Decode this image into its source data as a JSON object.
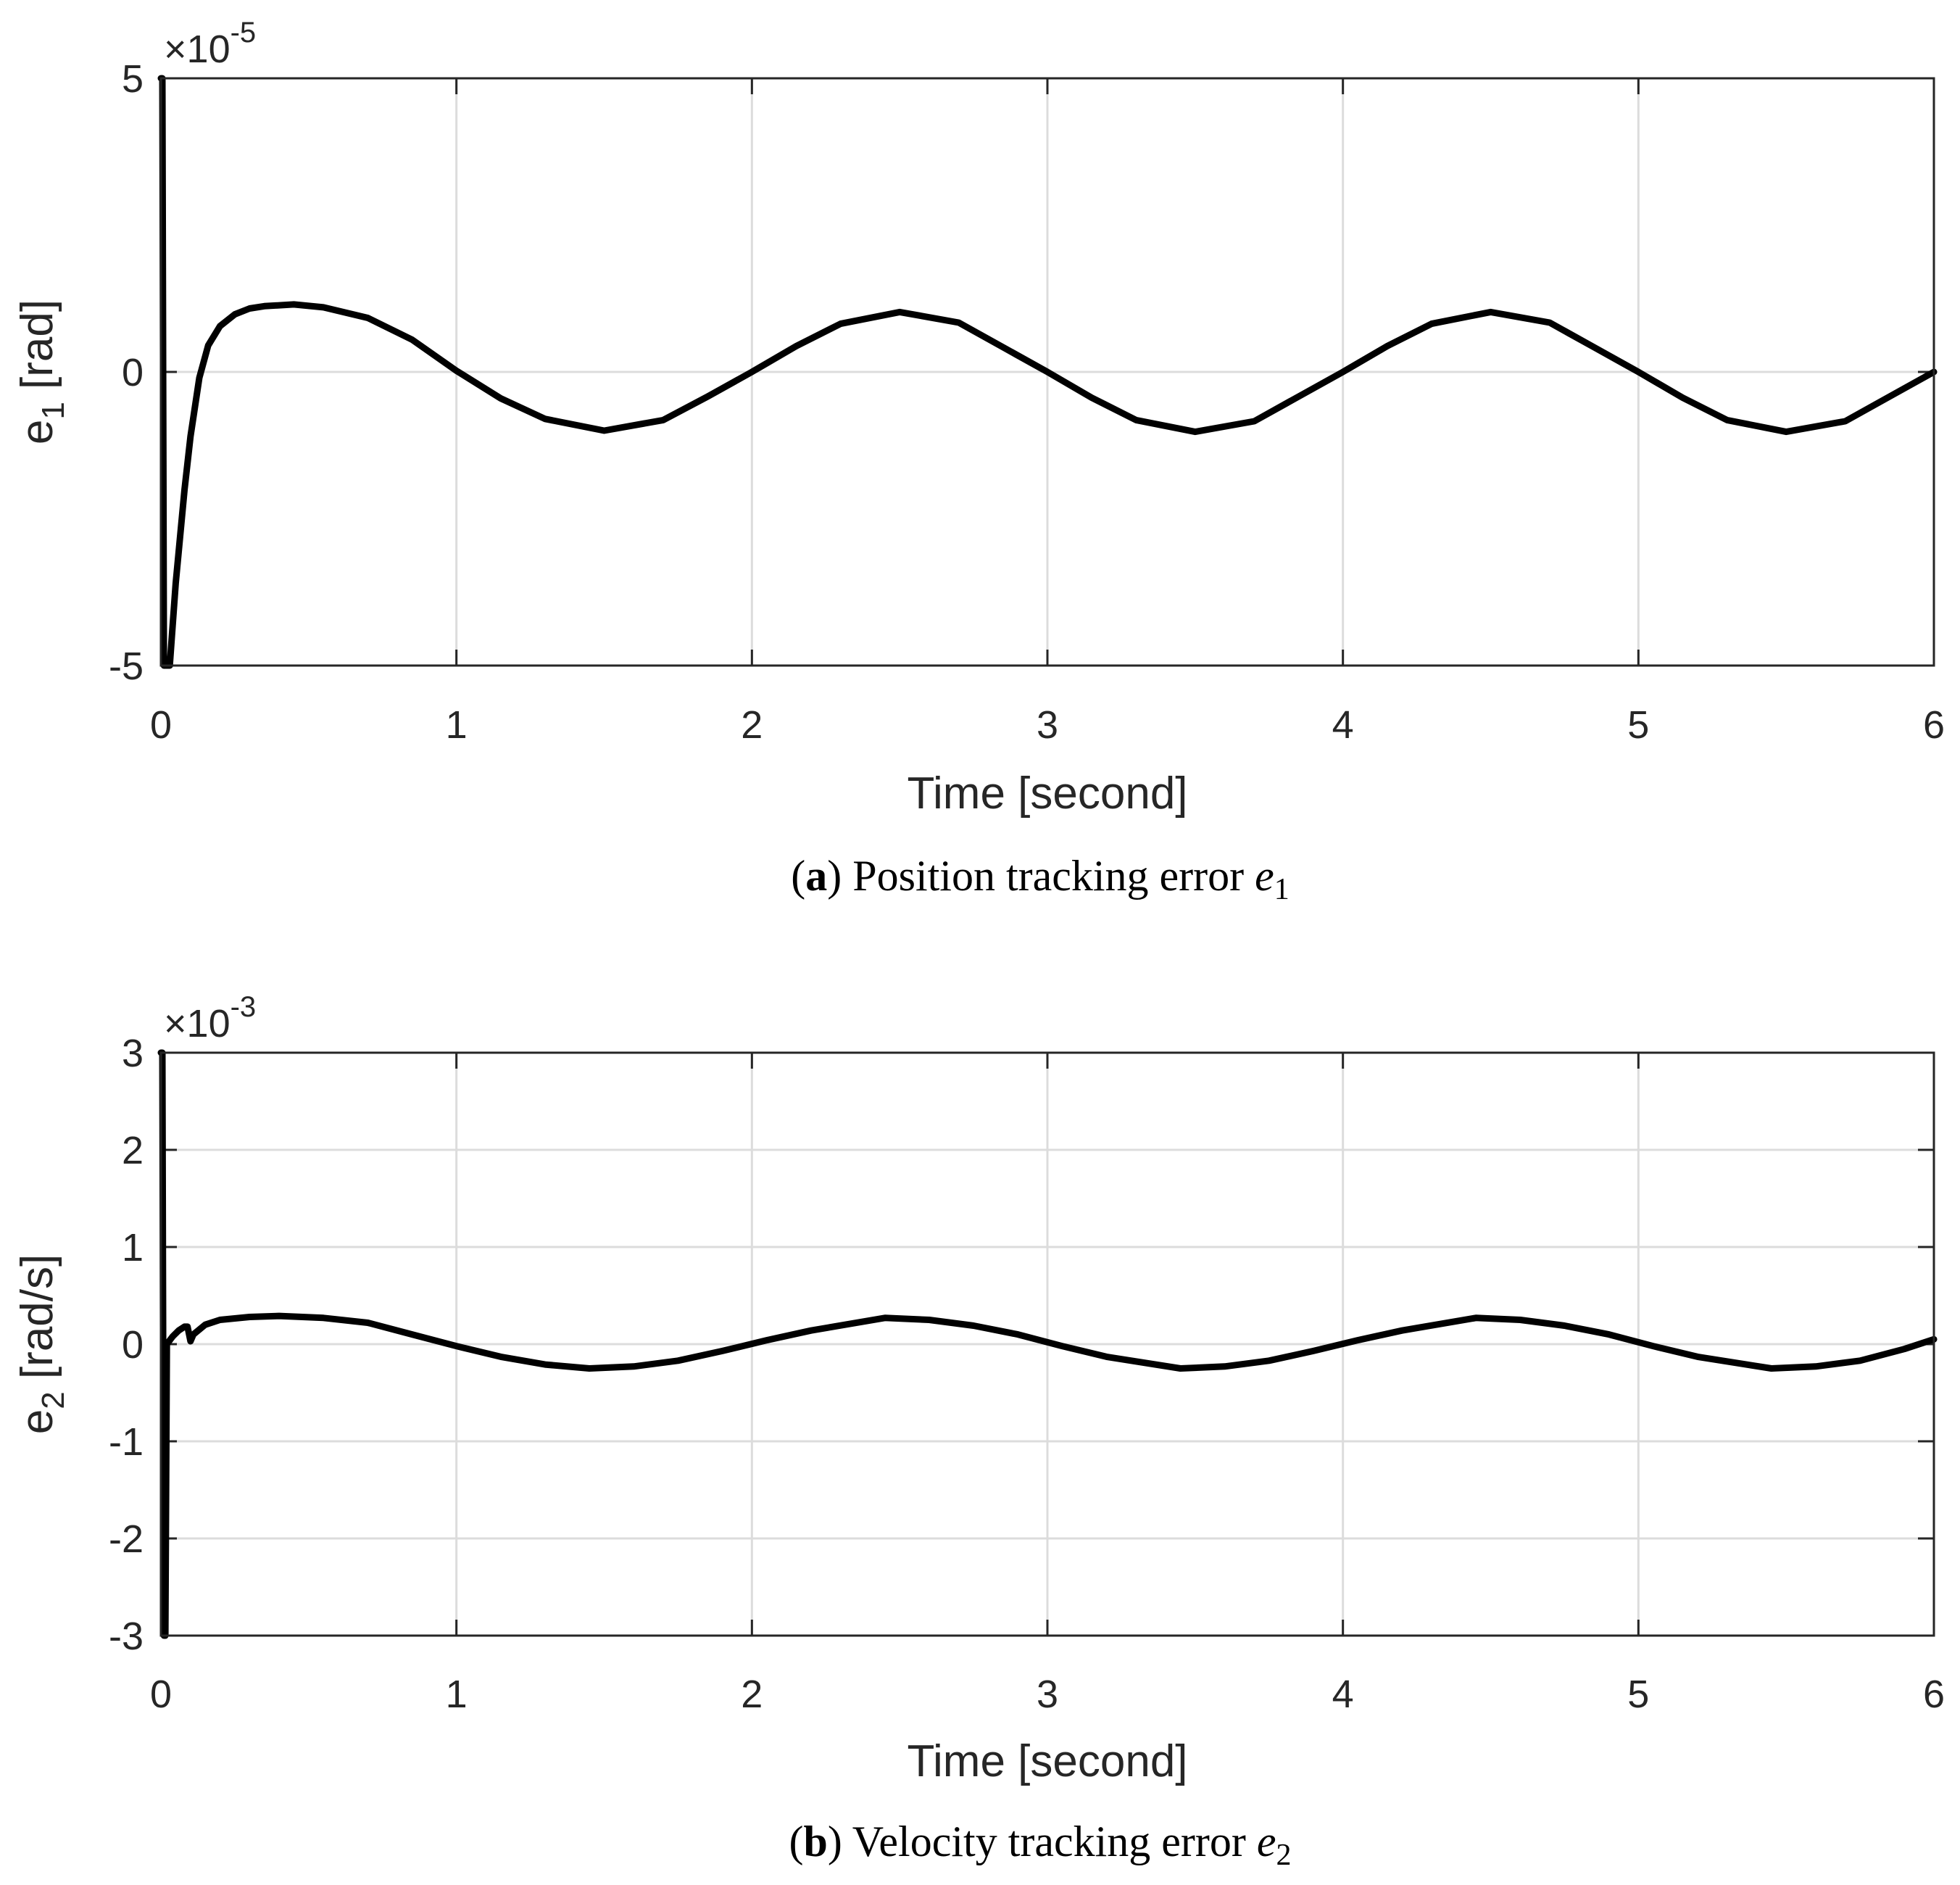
{
  "chart_data": [
    {
      "type": "line",
      "panel": "a",
      "xlabel": "Time [second]",
      "ylabel": "e",
      "ylabel_sub": "1",
      "ylabel_unit": " [rad]",
      "exponent_prefix": "×10",
      "exponent_power": "-5",
      "xlim": [
        0,
        6
      ],
      "ylim": [
        -5,
        5
      ],
      "xticks": [
        0,
        1,
        2,
        3,
        4,
        5,
        6
      ],
      "xtick_labels": [
        "0",
        "1",
        "2",
        "3",
        "4",
        "5",
        "6"
      ],
      "yticks": [
        -5,
        0,
        5
      ],
      "ytick_labels": [
        "-5",
        "0",
        "5"
      ],
      "grid": true,
      "caption": {
        "tag": "a",
        "text": "Position tracking error ",
        "var": "e",
        "sub": "1"
      },
      "series": [
        {
          "name": "e1",
          "x": [
            0,
            0.005,
            0.01,
            0.02,
            0.03,
            0.05,
            0.08,
            0.1,
            0.13,
            0.16,
            0.2,
            0.25,
            0.3,
            0.35,
            0.45,
            0.55,
            0.7,
            0.85,
            1.0,
            1.15,
            1.3,
            1.5,
            1.7,
            1.85,
            2.0,
            2.15,
            2.3,
            2.5,
            2.7,
            2.85,
            3.0,
            3.15,
            3.3,
            3.5,
            3.7,
            3.85,
            4.0,
            4.15,
            4.3,
            4.5,
            4.7,
            4.85,
            5.0,
            5.15,
            5.3,
            5.5,
            5.7,
            5.85,
            6.0
          ],
          "y": [
            5,
            5,
            -5,
            -5,
            -5,
            -3.6,
            -2.0,
            -1.1,
            -0.1,
            0.45,
            0.78,
            0.98,
            1.08,
            1.12,
            1.15,
            1.1,
            0.92,
            0.55,
            0.02,
            -0.45,
            -0.8,
            -1.0,
            -0.82,
            -0.42,
            0.0,
            0.44,
            0.82,
            1.02,
            0.84,
            0.42,
            0.0,
            -0.44,
            -0.82,
            -1.02,
            -0.84,
            -0.42,
            0.0,
            0.44,
            0.82,
            1.02,
            0.84,
            0.42,
            0.0,
            -0.44,
            -0.82,
            -1.02,
            -0.84,
            -0.42,
            0.0
          ]
        }
      ]
    },
    {
      "type": "line",
      "panel": "b",
      "xlabel": "Time [second]",
      "ylabel": "e",
      "ylabel_sub": "2",
      "ylabel_unit": " [rad/s]",
      "exponent_prefix": "×10",
      "exponent_power": "-3",
      "xlim": [
        0,
        6
      ],
      "ylim": [
        -3,
        3
      ],
      "xticks": [
        0,
        1,
        2,
        3,
        4,
        5,
        6
      ],
      "xtick_labels": [
        "0",
        "1",
        "2",
        "3",
        "4",
        "5",
        "6"
      ],
      "yticks": [
        -3,
        -2,
        -1,
        0,
        1,
        2,
        3
      ],
      "ytick_labels": [
        "-3",
        "-2",
        "-1",
        "0",
        "1",
        "2",
        "3"
      ],
      "grid": true,
      "caption": {
        "tag": "b",
        "text": "Velocity tracking error ",
        "var": "e",
        "sub": "2"
      },
      "series": [
        {
          "name": "e2",
          "x": [
            0,
            0.005,
            0.01,
            0.015,
            0.02,
            0.025,
            0.04,
            0.06,
            0.08,
            0.09,
            0.1,
            0.11,
            0.15,
            0.2,
            0.3,
            0.4,
            0.55,
            0.7,
            0.85,
            1.0,
            1.15,
            1.3,
            1.45,
            1.6,
            1.75,
            1.9,
            2.05,
            2.2,
            2.45,
            2.6,
            2.75,
            2.9,
            3.05,
            3.2,
            3.45,
            3.6,
            3.75,
            3.9,
            4.05,
            4.2,
            4.45,
            4.6,
            4.75,
            4.9,
            5.05,
            5.2,
            5.45,
            5.6,
            5.75,
            5.9,
            6.0
          ],
          "y": [
            3,
            3,
            -3,
            -3,
            0.0,
            0.02,
            0.08,
            0.14,
            0.18,
            0.18,
            0.03,
            0.1,
            0.2,
            0.25,
            0.28,
            0.29,
            0.27,
            0.22,
            0.1,
            -0.02,
            -0.13,
            -0.21,
            -0.25,
            -0.23,
            -0.17,
            -0.07,
            0.04,
            0.14,
            0.27,
            0.25,
            0.19,
            0.1,
            -0.02,
            -0.13,
            -0.25,
            -0.23,
            -0.17,
            -0.07,
            0.04,
            0.14,
            0.27,
            0.25,
            0.19,
            0.1,
            -0.02,
            -0.13,
            -0.25,
            -0.23,
            -0.17,
            -0.05,
            0.05
          ]
        }
      ]
    }
  ]
}
